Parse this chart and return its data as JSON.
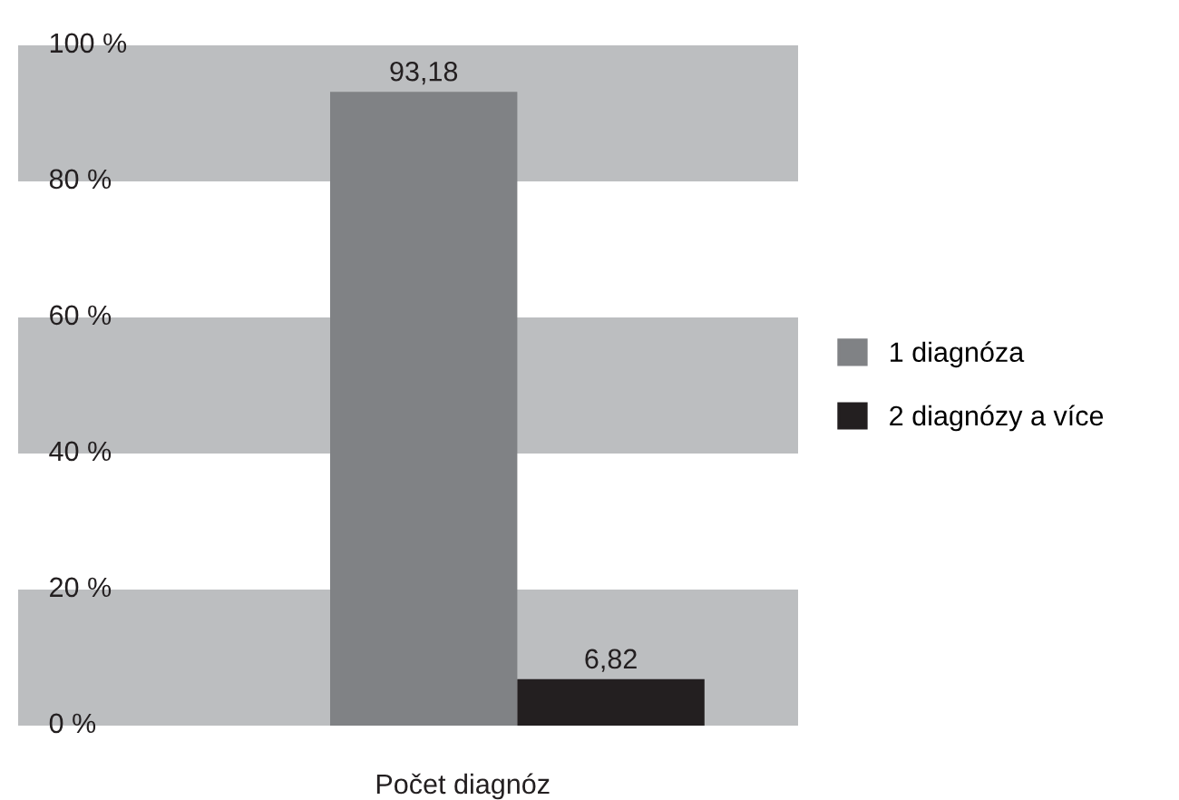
{
  "chart_data": {
    "type": "bar",
    "xlabel": "Počet diagnóz",
    "categories": [
      null
    ],
    "series": [
      {
        "name": "1 diagnóza",
        "color": "#808285",
        "values": [
          93.18
        ],
        "value_labels": [
          "93,18"
        ]
      },
      {
        "name": "2 diagnózy a více",
        "color": "#231f20",
        "values": [
          6.82
        ],
        "value_labels": [
          "6,82"
        ]
      }
    ],
    "ylim": [
      0,
      100
    ],
    "yticks": [
      {
        "value": 0,
        "label": "0 %"
      },
      {
        "value": 20,
        "label": "20 %"
      },
      {
        "value": 40,
        "label": "40 %"
      },
      {
        "value": 60,
        "label": "60 %"
      },
      {
        "value": 80,
        "label": "80 %"
      },
      {
        "value": 100,
        "label": "100 %"
      }
    ],
    "bands": [
      {
        "axis": "y",
        "from": 0,
        "to": 20,
        "color": "#bcbec0"
      },
      {
        "axis": "y",
        "from": 40,
        "to": 60,
        "color": "#bcbec0"
      },
      {
        "axis": "y",
        "from": 80,
        "to": 100,
        "color": "#bcbec0"
      }
    ],
    "grid": false,
    "legend": "right"
  }
}
